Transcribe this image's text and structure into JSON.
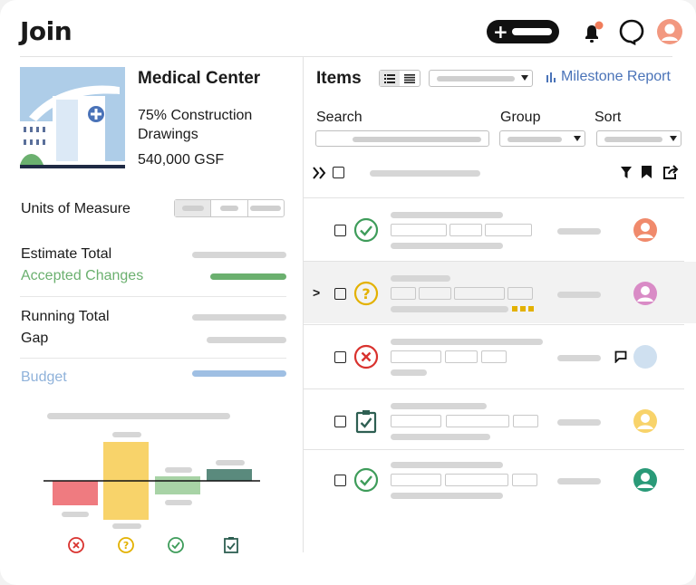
{
  "app": {
    "logo": "Join"
  },
  "header": {
    "add_icon": "plus-icon",
    "notification_icon": "bell-icon",
    "notification_badge_color": "#f07c5a",
    "help_icon": "chat-bubble-icon",
    "user_avatar_color": "#f29880"
  },
  "project": {
    "name": "Medical Center",
    "stage": "75% Construction Drawings",
    "size": "540,000 GSF"
  },
  "summary": {
    "units_of_measure": "Units of Measure",
    "estimate_total": "Estimate Total",
    "accepted_changes": "Accepted Changes",
    "running_total": "Running Total",
    "gap": "Gap",
    "budget": "Budget",
    "colors": {
      "accepted": "#6bb06f",
      "budget": "#9fbfe3"
    }
  },
  "mini_chart": {
    "icons": [
      "rejected-icon",
      "pending-icon",
      "accepted-icon",
      "incorporated-icon"
    ],
    "colors": [
      "#ef7b80",
      "#f8d36a",
      "#a8d3a6",
      "#5a8a7d"
    ]
  },
  "items": {
    "title": "Items",
    "view_icons": [
      "list-detail-icon",
      "list-compact-icon"
    ],
    "milestone_report": "Milestone Report",
    "search_label": "Search",
    "group_label": "Group",
    "sort_label": "Sort",
    "header_icons": [
      "expand-all-icon",
      "filter-icon",
      "bookmark-icon",
      "share-icon"
    ],
    "rows": [
      {
        "status": "accepted",
        "avatar_color": "#f08a6c"
      },
      {
        "status": "pending",
        "avatar_color": "#d98bc6",
        "expanded_marker": ">"
      },
      {
        "status": "rejected",
        "avatar_color": "#cfe0f0",
        "has_comment": true
      },
      {
        "status": "incorporated",
        "avatar_color": "#f8d36a"
      },
      {
        "status": "accepted",
        "avatar_color": "#2a9a78"
      }
    ]
  }
}
